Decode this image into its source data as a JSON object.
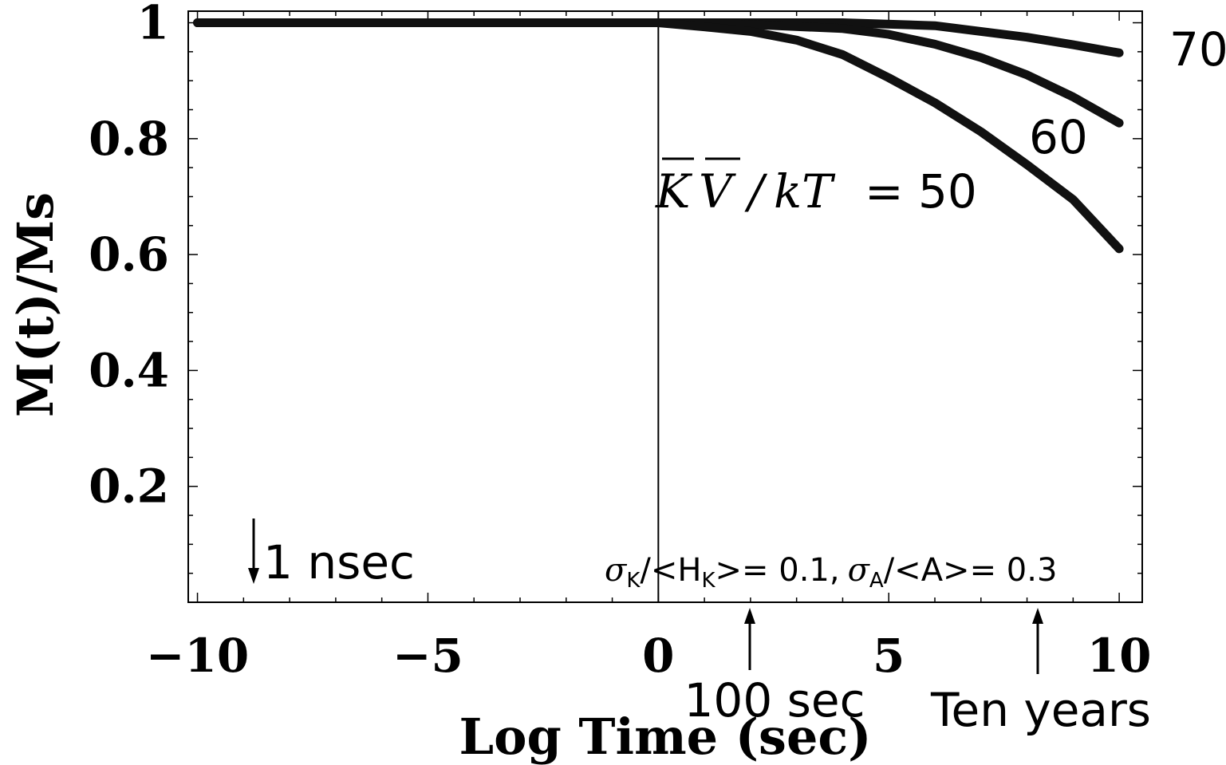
{
  "chart_data": {
    "type": "line",
    "xlabel": "Log Time (sec)",
    "ylabel": "M(t)/Ms",
    "xlim": [
      -10.2,
      10.5
    ],
    "ylim": [
      0.0,
      1.02
    ],
    "grid": false,
    "x_ticks": [
      -10,
      -5,
      0,
      5,
      10
    ],
    "x_tick_labels": [
      "−10",
      "−5",
      "0",
      "5",
      "10"
    ],
    "y_ticks": [
      0.2,
      0.4,
      0.6,
      0.8,
      1
    ],
    "y_tick_labels": [
      "0.2",
      "0.4",
      "0.6",
      "0.8",
      "1"
    ],
    "vertical_line_x": 0,
    "series": [
      {
        "name": "70",
        "x": [
          -10,
          -5,
          0,
          2,
          4,
          6,
          8,
          9,
          10
        ],
        "y": [
          1.0,
          1.0,
          1.0,
          1.0,
          1.0,
          0.995,
          0.975,
          0.962,
          0.948
        ]
      },
      {
        "name": "60",
        "x": [
          -10,
          -5,
          0,
          2,
          4,
          5,
          6,
          7,
          8,
          9,
          10
        ],
        "y": [
          1.0,
          1.0,
          1.0,
          0.997,
          0.99,
          0.98,
          0.963,
          0.94,
          0.91,
          0.872,
          0.827
        ]
      },
      {
        "name": "= 50",
        "x": [
          -10,
          -5,
          0,
          1,
          2,
          3,
          4,
          5,
          6,
          7,
          8,
          9,
          10
        ],
        "y": [
          1.0,
          1.0,
          1.0,
          0.993,
          0.985,
          0.97,
          0.945,
          0.905,
          0.862,
          0.812,
          0.755,
          0.695,
          0.61
        ]
      }
    ],
    "annotations": {
      "series_label_70": "70",
      "series_label_60": "60",
      "ratio_label_rhs": "= 50",
      "ratio_K": "K",
      "ratio_V": "V",
      "ratio_slash": "/",
      "ratio_kT": "kT",
      "arrow_1nsec_label": "1 nsec",
      "arrow_100sec_label": "100 sec",
      "arrow_tenyears_label": "Ten years",
      "sigma": "σ",
      "sub_K": "K",
      "sub_A": "A",
      "dist_p1": "/<H",
      "dist_p2": ">= 0.1,",
      "dist_p3": "/<A>= 0.3"
    }
  }
}
